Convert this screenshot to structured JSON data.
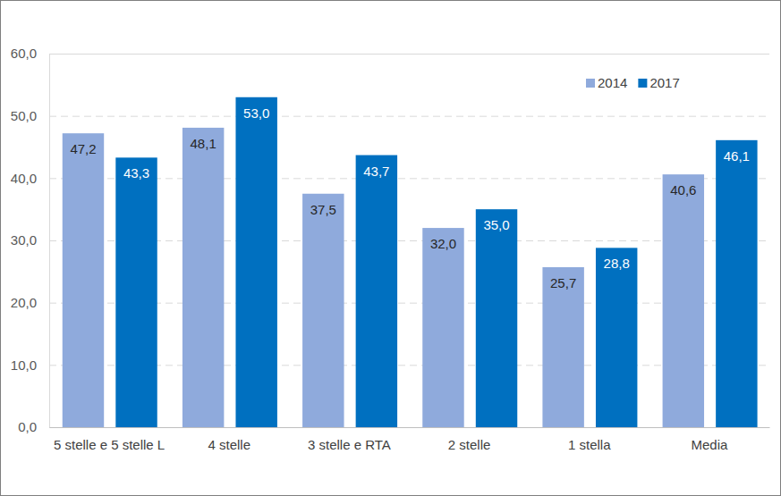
{
  "chart_data": {
    "type": "bar",
    "categories": [
      "5 stelle e 5 stelle L",
      "4 stelle",
      "3 stelle e RTA",
      "2 stelle",
      "1 stella",
      "Media"
    ],
    "series": [
      {
        "name": "2014",
        "color": "#8FAADC",
        "values": [
          47.2,
          48.1,
          37.5,
          32.0,
          25.7,
          40.6
        ],
        "value_labels": [
          "47,2",
          "48,1",
          "37,5",
          "32,0",
          "25,7",
          "40,6"
        ]
      },
      {
        "name": "2017",
        "color": "#0070C0",
        "values": [
          43.3,
          53.0,
          43.7,
          35.0,
          28.8,
          46.1
        ],
        "value_labels": [
          "43,3",
          "53,0",
          "43,7",
          "35,0",
          "28,8",
          "46,1"
        ]
      }
    ],
    "ylim": [
      0,
      60
    ],
    "yticks": [
      {
        "value": 0,
        "label": "0,0"
      },
      {
        "value": 10,
        "label": "10,0"
      },
      {
        "value": 20,
        "label": "20,0"
      },
      {
        "value": 30,
        "label": "30,0"
      },
      {
        "value": 40,
        "label": "40,0"
      },
      {
        "value": 50,
        "label": "50,0"
      },
      {
        "value": 60,
        "label": "60,0"
      }
    ],
    "grid": true,
    "legend": "top-right",
    "data_labels": true
  }
}
